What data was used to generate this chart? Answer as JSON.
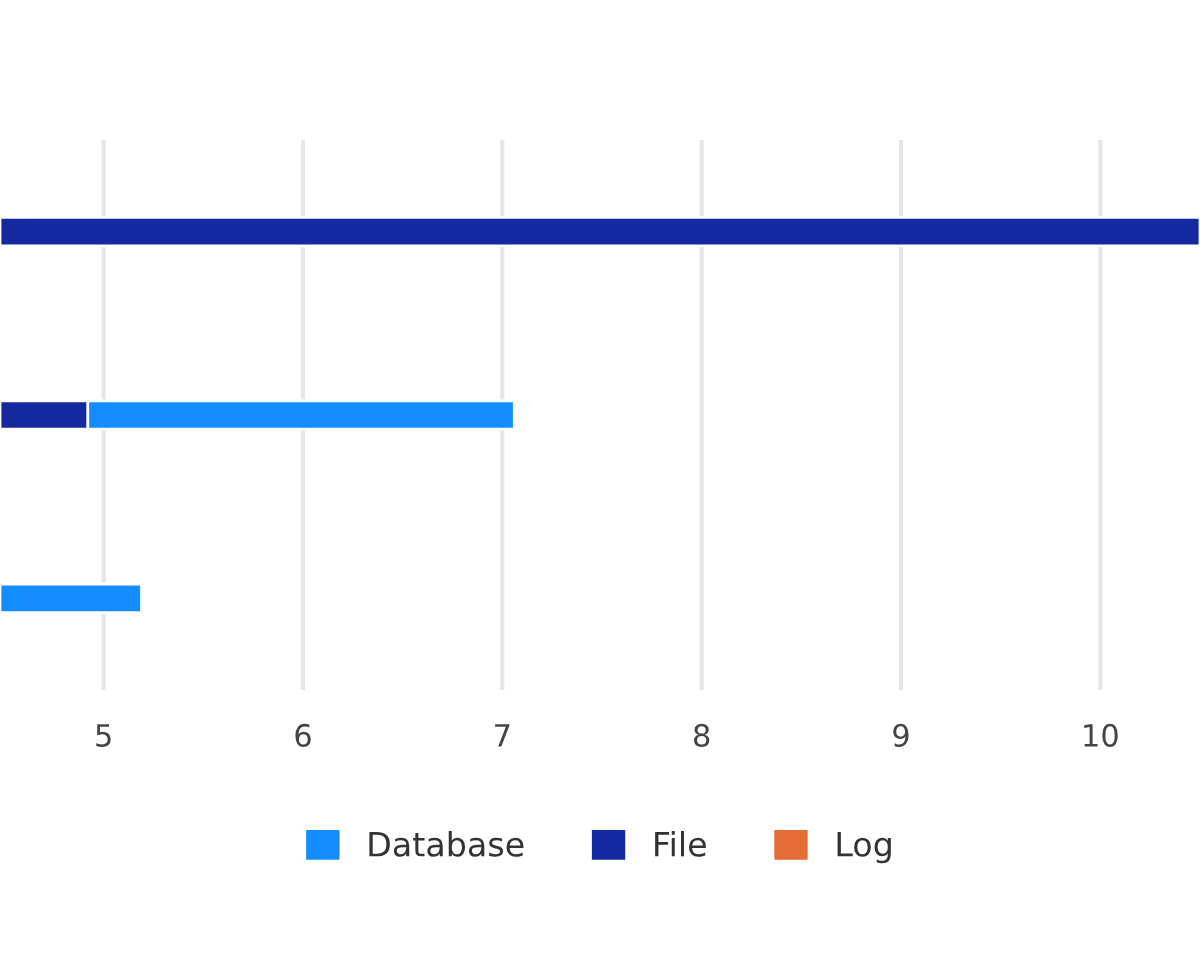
{
  "chart_data": {
    "type": "bar",
    "orientation": "horizontal",
    "categories": [
      null,
      null,
      null
    ],
    "series": [
      {
        "name": "Database",
        "color": "#138cff",
        "values": [
          null,
          2.14,
          0.71
        ],
        "base": [
          null,
          4.92,
          4.48
        ]
      },
      {
        "name": "File",
        "color": "#1428a0",
        "values": [
          6.02,
          0.44,
          null
        ],
        "base": [
          4.48,
          4.48,
          null
        ]
      },
      {
        "name": "Log",
        "color": "#e66c37",
        "values": [
          null,
          null,
          null
        ],
        "base": [
          null,
          null,
          null
        ]
      }
    ],
    "xlim": [
      4.48,
      10.5
    ],
    "xticks": [
      5,
      6,
      7,
      8,
      9,
      10
    ],
    "grid": "x",
    "legend": "bottom"
  }
}
